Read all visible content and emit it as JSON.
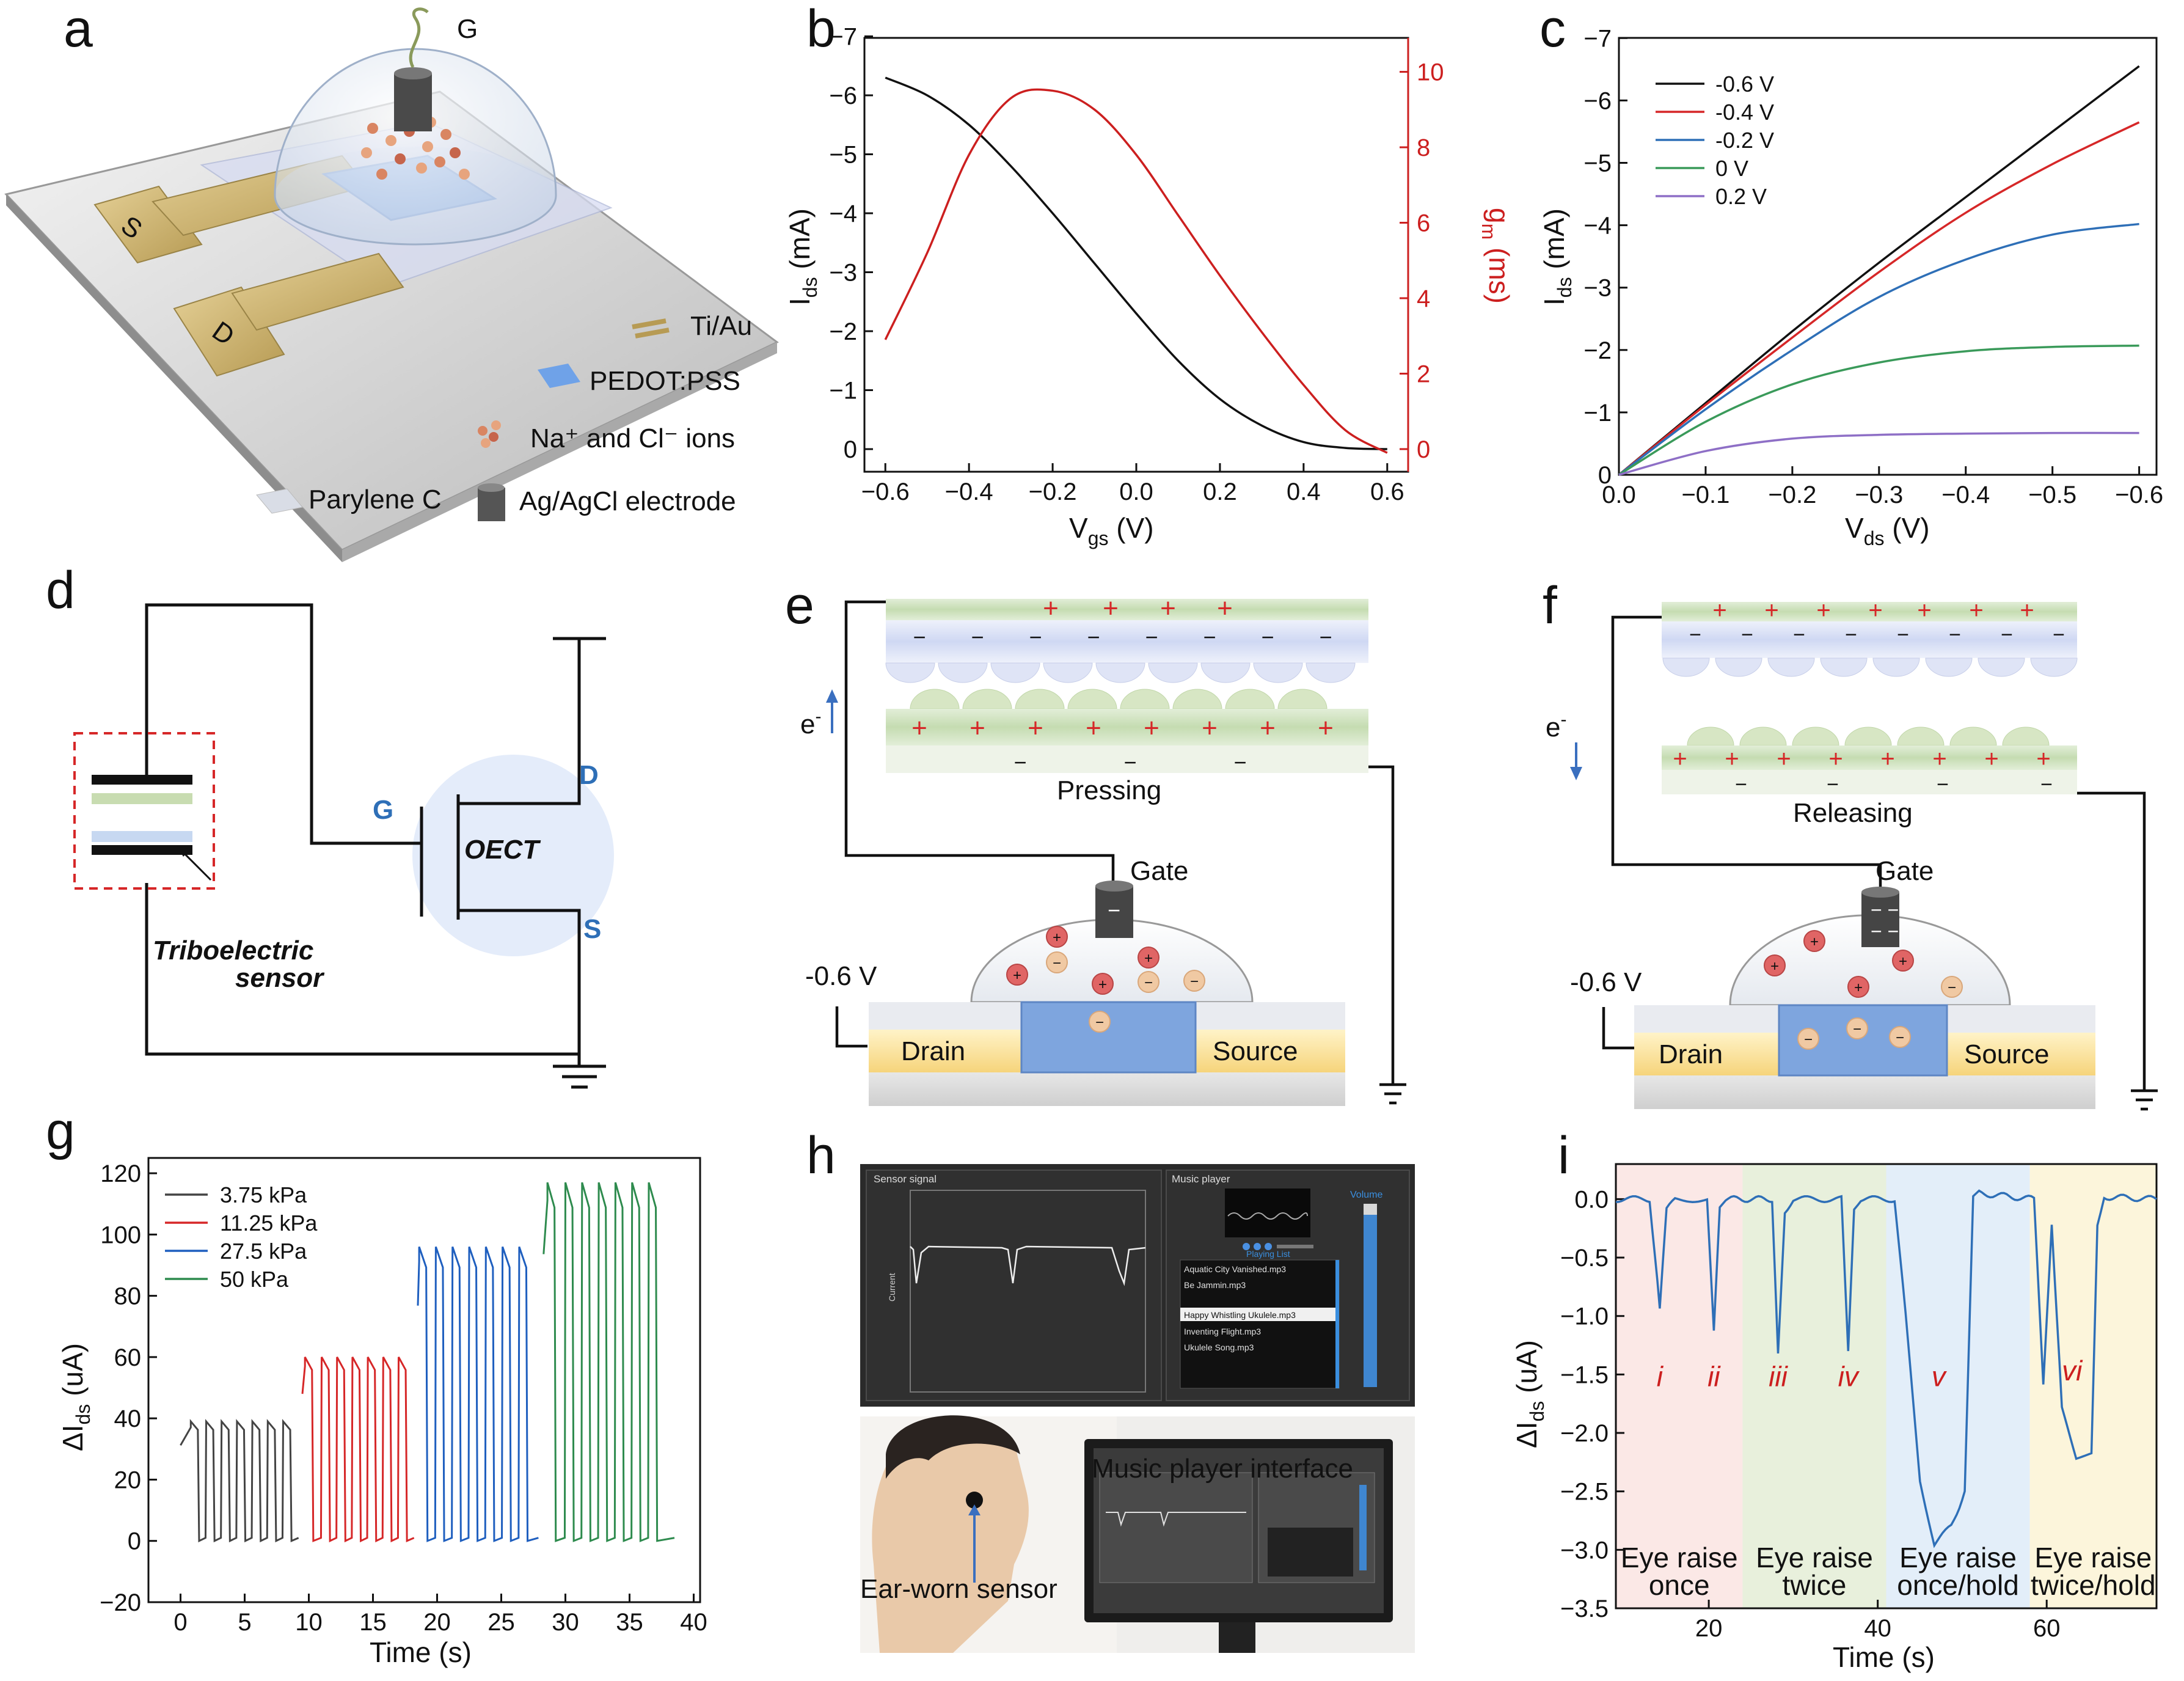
{
  "panels": {
    "a": {
      "letter": "a",
      "gate": "G",
      "source": "S",
      "drain": "D",
      "legend": [
        "Ti/Au",
        "PEDOT:PSS",
        "Na⁺ and Cl⁻ ions",
        "Parylene C",
        "Ag/AgCl electrode"
      ]
    },
    "b": {
      "letter": "b",
      "xlabel_main": "V",
      "xlabel_sub": "gs",
      "xlabel_unit": " (V)",
      "ylabel_main": "I",
      "ylabel_sub": "ds",
      "ylabel_unit": " (mA)",
      "y2label_main": "g",
      "y2label_sub": "m",
      "y2label_unit": " (ms)",
      "xticks": [
        "−0.6",
        "−0.4",
        "−0.2",
        "0.0",
        "0.2",
        "0.4",
        "0.6"
      ],
      "yticks": [
        "0",
        "−1",
        "−2",
        "−3",
        "−4",
        "−5",
        "−6",
        "−7"
      ],
      "y2ticks": [
        "0",
        "2",
        "4",
        "6",
        "8",
        "10"
      ]
    },
    "c": {
      "letter": "c",
      "xlabel_main": "V",
      "xlabel_sub": "ds",
      "xlabel_unit": " (V)",
      "ylabel_main": "I",
      "ylabel_sub": "ds",
      "ylabel_unit": " (mA)",
      "xticks": [
        "0.0",
        "−0.1",
        "−0.2",
        "−0.3",
        "−0.4",
        "−0.5",
        "−0.6"
      ],
      "yticks": [
        "0",
        "−1",
        "−2",
        "−3",
        "−4",
        "−5",
        "−6",
        "−7"
      ]
    },
    "d": {
      "letter": "d",
      "gate": "G",
      "drain": "D",
      "source": "S",
      "device": "OECT",
      "sensor_line1": "Triboelectric",
      "sensor_line2": "sensor"
    },
    "e": {
      "letter": "e",
      "electron": "e",
      "electron_sup": "-",
      "state": "Pressing",
      "gate": "Gate",
      "voltage": "-0.6 V",
      "drain": "Drain",
      "source": "Source"
    },
    "f": {
      "letter": "f",
      "electron": "e",
      "electron_sup": "-",
      "state": "Releasing",
      "gate": "Gate",
      "voltage": "-0.6 V",
      "drain": "Drain",
      "source": "Source"
    },
    "g": {
      "letter": "g",
      "xlabel": "Time (s)",
      "ylabel_main": "ΔI",
      "ylabel_sub": "ds",
      "ylabel_unit": " (uA)",
      "xticks": [
        "0",
        "5",
        "10",
        "15",
        "20",
        "25",
        "30",
        "35",
        "40"
      ],
      "yticks": [
        "−20",
        "0",
        "20",
        "40",
        "60",
        "80",
        "100",
        "120"
      ]
    },
    "h": {
      "letter": "h",
      "sensor_title": "Sensor signal",
      "music_title": "Music player",
      "current_label": "Current",
      "volume": "Volume",
      "playing_list": "Playing List",
      "songs": [
        "Aquatic City Vanished.mp3",
        "Be Jammin.mp3",
        "Happy Whistling Ukulele.mp3",
        "Inventing Flight.mp3",
        "Ukulele Song.mp3"
      ],
      "interface_label": "Music player interface",
      "sensor_label": "Ear-worn sensor"
    },
    "i": {
      "letter": "i",
      "xlabel": "Time (s)",
      "ylabel_main": "ΔI",
      "ylabel_sub": "ds",
      "ylabel_unit": " (uA)",
      "xticks": [
        "20",
        "40",
        "60"
      ],
      "yticks": [
        "0.0",
        "−0.5",
        "−1.0",
        "−1.5",
        "−2.0",
        "−2.5",
        "−3.0",
        "−3.5"
      ],
      "event_labels": [
        "i",
        "ii",
        "iii",
        "iv",
        "v",
        "vi"
      ],
      "regions": [
        {
          "line1": "Eye raise",
          "line2": "once"
        },
        {
          "line1": "Eye raise",
          "line2": "twice"
        },
        {
          "line1": "Eye raise",
          "line2": "once/hold"
        },
        {
          "line1": "Eye raise",
          "line2": "twice/hold"
        }
      ]
    }
  },
  "chart_data": [
    {
      "panel": "b",
      "type": "line",
      "x": [
        -0.6,
        -0.5,
        -0.4,
        -0.3,
        -0.2,
        -0.1,
        0.0,
        0.1,
        0.2,
        0.3,
        0.4,
        0.5,
        0.6
      ],
      "series": [
        {
          "axis": "left",
          "color": "#111111",
          "values": [
            -6.3,
            -6.0,
            -5.5,
            -4.8,
            -4.0,
            -3.15,
            -2.3,
            -1.5,
            -0.85,
            -0.4,
            -0.12,
            -0.02,
            0.0
          ]
        },
        {
          "axis": "right",
          "color": "#cc1f1f",
          "values": [
            2.9,
            5.2,
            7.8,
            9.3,
            9.5,
            9.0,
            7.8,
            6.2,
            4.6,
            3.1,
            1.7,
            0.5,
            -0.1
          ]
        }
      ],
      "xlim": [
        -0.65,
        0.65
      ],
      "ylim": [
        0,
        -7
      ],
      "y2lim": [
        -0.6,
        10.9
      ]
    },
    {
      "panel": "c",
      "type": "line",
      "x": [
        0,
        -0.1,
        -0.2,
        -0.3,
        -0.4,
        -0.5,
        -0.6
      ],
      "series": [
        {
          "name": "-0.6 V",
          "color": "#111111",
          "values": [
            0,
            -1.15,
            -2.3,
            -3.4,
            -4.45,
            -5.5,
            -6.55
          ]
        },
        {
          "name": "-0.4 V",
          "color": "#d62728",
          "values": [
            0,
            -1.12,
            -2.2,
            -3.25,
            -4.2,
            -4.98,
            -5.65
          ]
        },
        {
          "name": "-0.2 V",
          "color": "#2e6fb7",
          "values": [
            0,
            -1.05,
            -2.0,
            -2.85,
            -3.45,
            -3.85,
            -4.02
          ]
        },
        {
          "name": "0 V",
          "color": "#3a9a5a",
          "values": [
            0,
            -0.85,
            -1.45,
            -1.8,
            -1.98,
            -2.05,
            -2.07
          ]
        },
        {
          "name": "0.2 V",
          "color": "#8e6fc6",
          "values": [
            0,
            -0.38,
            -0.58,
            -0.64,
            -0.66,
            -0.67,
            -0.67
          ]
        }
      ],
      "xlim": [
        0,
        -0.62
      ],
      "ylim": [
        0,
        -7
      ]
    },
    {
      "panel": "g",
      "type": "line",
      "pulse_shape": "square pulses",
      "xlim": [
        -2.5,
        40.5
      ],
      "ylim": [
        -20,
        125
      ],
      "series": [
        {
          "name": "3.75 kPa",
          "color": "#444444",
          "high": 39,
          "low": 0,
          "pulse_starts": [
            0.8,
            2.0,
            3.2,
            4.4,
            5.6,
            6.8,
            8.0
          ],
          "x_range": [
            0,
            9.2
          ]
        },
        {
          "name": "11.25 kPa",
          "color": "#d62728",
          "high": 60,
          "low": 0,
          "pulse_starts": [
            9.7,
            11.0,
            12.2,
            13.4,
            14.6,
            15.8,
            17.0
          ],
          "x_range": [
            9.5,
            18.2
          ]
        },
        {
          "name": "27.5 kPa",
          "color": "#1f5fbf",
          "high": 96,
          "low": 0,
          "pulse_starts": [
            18.6,
            19.9,
            21.2,
            22.5,
            23.8,
            25.1,
            26.4
          ],
          "x_range": [
            18.5,
            27.9
          ]
        },
        {
          "name": "50 kPa",
          "color": "#2e8b4e",
          "high": 117,
          "low": 0,
          "pulse_starts": [
            28.6,
            30.0,
            31.3,
            32.6,
            33.9,
            35.2,
            36.5
          ],
          "x_range": [
            28.3,
            38.5
          ]
        }
      ]
    },
    {
      "panel": "i",
      "type": "line",
      "xlim": [
        9,
        73
      ],
      "ylim": [
        -3.5,
        0.3
      ],
      "color": "#2e6fb7",
      "points": [
        [
          9,
          0.0
        ],
        [
          13,
          0.0
        ],
        [
          14.2,
          -0.95
        ],
        [
          15,
          -0.1
        ],
        [
          16,
          0.0
        ],
        [
          19.8,
          0.0
        ],
        [
          20.6,
          -1.1
        ],
        [
          21.3,
          -0.05
        ],
        [
          22,
          0.0
        ],
        [
          27.5,
          0.0
        ],
        [
          28.2,
          -1.3
        ],
        [
          29.0,
          -0.1
        ],
        [
          30,
          0.0
        ],
        [
          35.7,
          0.0
        ],
        [
          36.5,
          -1.3
        ],
        [
          37.2,
          -0.1
        ],
        [
          38,
          0.0
        ],
        [
          42,
          0.0
        ],
        [
          43.3,
          -1.0
        ],
        [
          45.0,
          -2.4
        ],
        [
          46.7,
          -2.95
        ],
        [
          48.7,
          -2.8
        ],
        [
          50.3,
          -2.5
        ],
        [
          51.3,
          0.0
        ],
        [
          52,
          0.05
        ],
        [
          58.5,
          0.0
        ],
        [
          59.6,
          -1.6
        ],
        [
          60.6,
          -0.2
        ],
        [
          61.8,
          -1.8
        ],
        [
          63.5,
          -2.2
        ],
        [
          65.3,
          -2.15
        ],
        [
          66.0,
          -0.2
        ],
        [
          66.8,
          0.02
        ],
        [
          73,
          0.0
        ]
      ],
      "region_colors": [
        "#fbe8e6",
        "#e8f0dc",
        "#e3eef9",
        "#fcf5db"
      ],
      "region_bounds": [
        [
          9,
          24
        ],
        [
          24,
          41
        ],
        [
          41,
          58
        ],
        [
          58,
          73
        ]
      ]
    }
  ]
}
